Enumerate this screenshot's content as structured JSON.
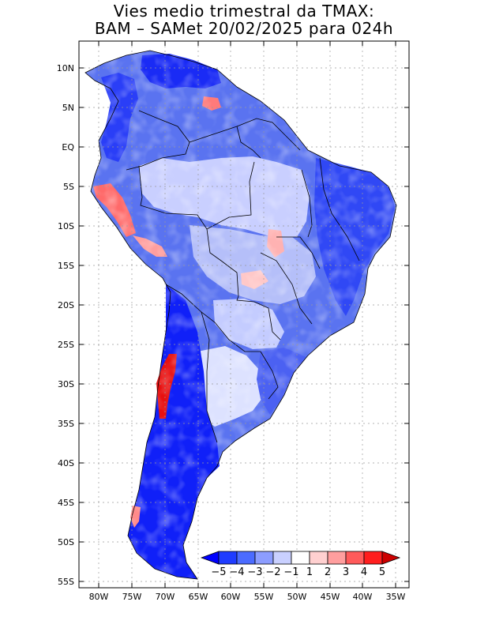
{
  "title_line1": "Vies medio trimestral da TMAX:",
  "title_line2": "BAM – SAMet 20/02/2025  para 024h",
  "lat_labels": [
    "10N",
    "5N",
    "EQ",
    "5S",
    "10S",
    "15S",
    "20S",
    "25S",
    "30S",
    "35S",
    "40S",
    "45S",
    "50S",
    "55S"
  ],
  "lon_labels": [
    "80W",
    "75W",
    "70W",
    "65W",
    "60W",
    "55W",
    "50W",
    "45W",
    "40W",
    "35W"
  ],
  "colorbar": {
    "labels": [
      "−5",
      "−4",
      "−3",
      "−2",
      "−1",
      "1",
      "2",
      "3",
      "4",
      "5"
    ],
    "colors": [
      "#0000ff",
      "#1f3cff",
      "#4b6bff",
      "#8c9dff",
      "#c9d0ff",
      "#ffffff",
      "#ffd0d0",
      "#ff9e9e",
      "#ff5a5a",
      "#ff1e1e",
      "#cc0000"
    ]
  }
}
